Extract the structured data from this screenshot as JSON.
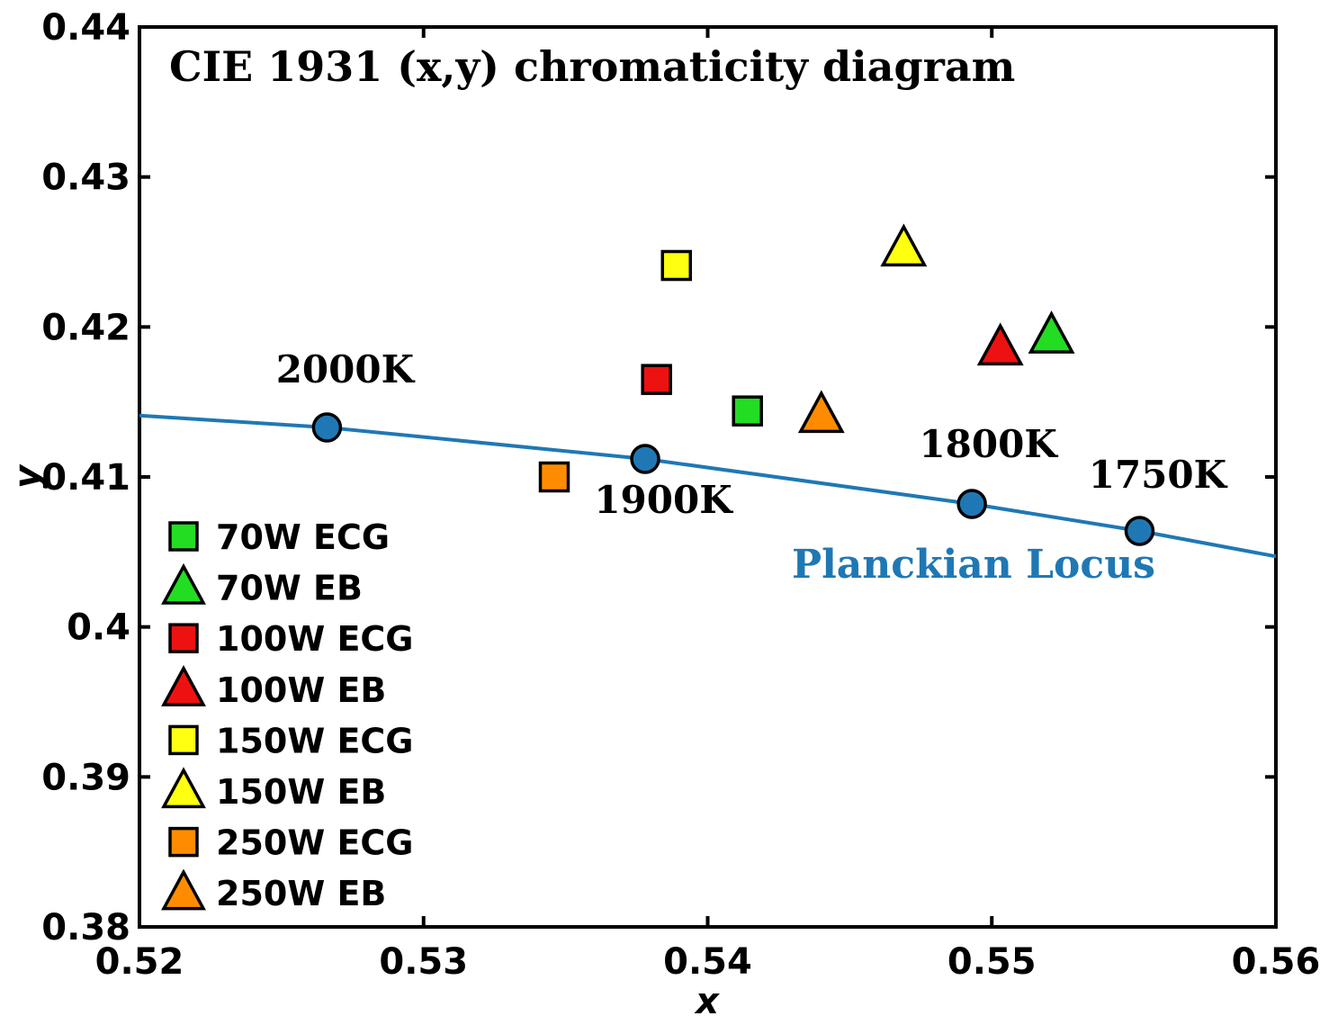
{
  "chart_data": {
    "type": "scatter",
    "title": "CIE 1931 (x,y) chromaticity diagram",
    "xlabel": "x",
    "ylabel": "y",
    "xlim": [
      0.52,
      0.56
    ],
    "ylim": [
      0.38,
      0.44
    ],
    "xticks": [
      0.52,
      0.53,
      0.54,
      0.55,
      0.56
    ],
    "xtick_labels": [
      "0.52",
      "0.53",
      "0.54",
      "0.55",
      "0.56"
    ],
    "yticks": [
      0.38,
      0.39,
      0.4,
      0.41,
      0.42,
      0.43,
      0.44
    ],
    "ytick_labels": [
      "0.38",
      "0.39",
      "0.4",
      "0.41",
      "0.42",
      "0.43",
      "0.44"
    ],
    "grid": false,
    "legend_position": "bottom-left",
    "planckian_locus": {
      "label": "Planckian Locus",
      "color": "#1f78b4",
      "x": [
        0.52,
        0.5266,
        0.5378,
        0.5493,
        0.5552,
        0.56
      ],
      "y": [
        0.4141,
        0.4133,
        0.4112,
        0.4082,
        0.4064,
        0.4047
      ],
      "points": [
        {
          "label": "2000K",
          "x": 0.5266,
          "y": 0.4133
        },
        {
          "label": "1900K",
          "x": 0.5378,
          "y": 0.4112
        },
        {
          "label": "1800K",
          "x": 0.5493,
          "y": 0.4082
        },
        {
          "label": "1750K",
          "x": 0.5552,
          "y": 0.4064
        }
      ]
    },
    "series": [
      {
        "name": "70W ECG",
        "marker": "square",
        "color": "#22dd22",
        "x": 0.5414,
        "y": 0.4144
      },
      {
        "name": "70W EB",
        "marker": "triangle",
        "color": "#22dd22",
        "x": 0.5521,
        "y": 0.4193
      },
      {
        "name": "100W ECG",
        "marker": "square",
        "color": "#ee1111",
        "x": 0.5382,
        "y": 0.4165
      },
      {
        "name": "100W EB",
        "marker": "triangle",
        "color": "#ee1111",
        "x": 0.5503,
        "y": 0.4185
      },
      {
        "name": "150W ECG",
        "marker": "square",
        "color": "#ffff11",
        "x": 0.5389,
        "y": 0.4241
      },
      {
        "name": "150W EB",
        "marker": "triangle",
        "color": "#ffff11",
        "x": 0.5469,
        "y": 0.4251
      },
      {
        "name": "250W ECG",
        "marker": "square",
        "color": "#ff8c00",
        "x": 0.5346,
        "y": 0.41
      },
      {
        "name": "250W EB",
        "marker": "triangle",
        "color": "#ff8c00",
        "x": 0.544,
        "y": 0.414
      }
    ]
  }
}
